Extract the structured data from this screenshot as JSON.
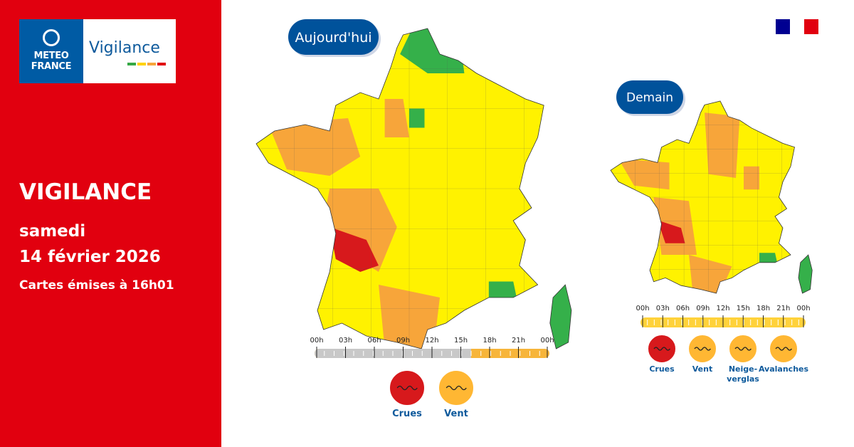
{
  "logo": {
    "brand_lines": [
      "METEO",
      "FRANCE"
    ],
    "product": "Vigilance"
  },
  "headline": "VIGILANCE",
  "day": "samedi",
  "date": "14 février 2026",
  "issued": "Cartes émises à 16h01",
  "maps": [
    {
      "label": "Aujourd'hui",
      "hours": [
        "00h",
        "03h",
        "06h",
        "09h",
        "12h",
        "15h",
        "18h",
        "21h",
        "00h"
      ],
      "hazards": [
        {
          "lines": [
            "Crues"
          ],
          "color": "#d7191c"
        },
        {
          "lines": [
            "Vent"
          ],
          "color": "#ffb733"
        }
      ]
    },
    {
      "label": "Demain",
      "hours": [
        "00h",
        "03h",
        "06h",
        "09h",
        "12h",
        "15h",
        "18h",
        "21h",
        "00h"
      ],
      "hazards": [
        {
          "lines": [
            "Crues"
          ],
          "color": "#d7191c"
        },
        {
          "lines": [
            "Vent"
          ],
          "color": "#ffb733"
        },
        {
          "lines": [
            "Neige-",
            "verglas"
          ],
          "color": "#ffb733"
        },
        {
          "lines": [
            "Avalanches"
          ],
          "color": "#ffb733"
        }
      ]
    }
  ]
}
